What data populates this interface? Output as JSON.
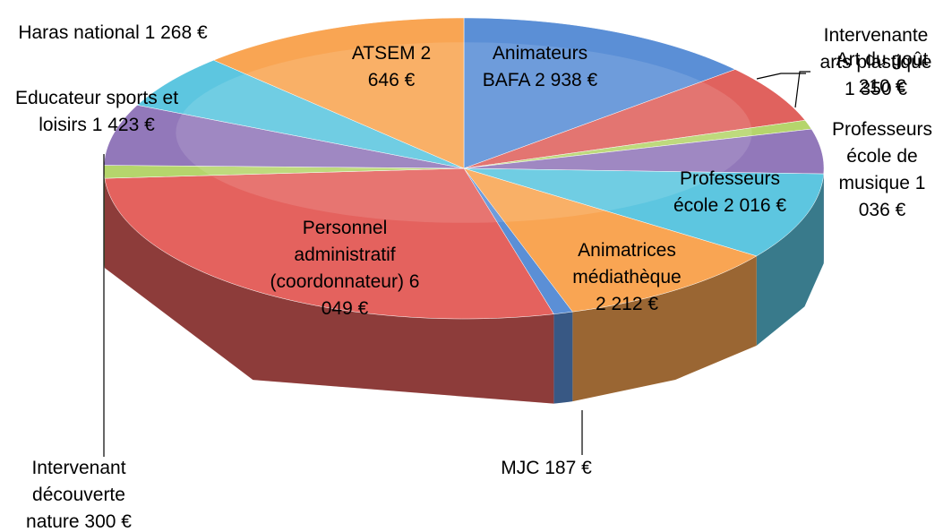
{
  "chart_data": {
    "type": "pie3d",
    "categories": [
      "Animateurs BAFA",
      "Intervenante arts plastique",
      "Art du goût",
      "Professeurs école de musique",
      "Professeurs école",
      "Animatrices médiathèque",
      "MJC",
      "Personnel administratif (coordonnateur)",
      "Intervenant découverte nature",
      "Educateur sports et loisirs",
      "Haras national",
      "ATSEM"
    ],
    "values": [
      2938,
      1350,
      210,
      1036,
      2016,
      2212,
      187,
      6049,
      300,
      1423,
      1268,
      2646
    ],
    "value_labels": [
      "2 938 €",
      "1 350 €",
      "210 €",
      "1 036 €",
      "2 016 €",
      "2 212 €",
      "187 €",
      "6 049 €",
      "300 €",
      "1 423 €",
      "1 268 €",
      "2 646 €"
    ],
    "colors": [
      "#5b8fd6",
      "#e0625e",
      "#b5d56c",
      "#9278ba",
      "#5dc6e0",
      "#f9a553",
      "#5b8fd6",
      "#e4625e",
      "#b5d56c",
      "#9278ba",
      "#5dc6e0",
      "#f9a553"
    ]
  }
}
